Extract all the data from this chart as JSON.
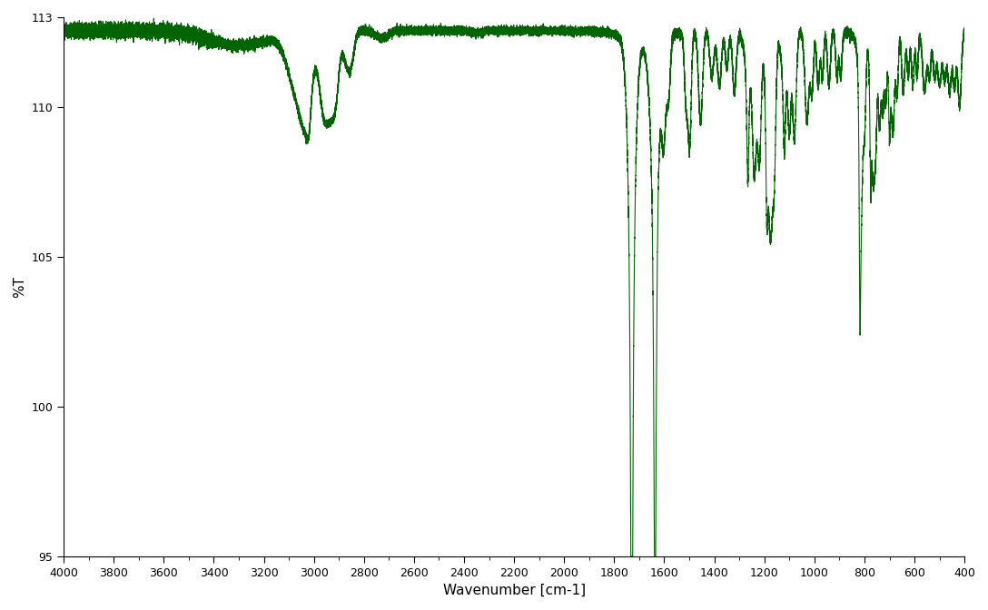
{
  "xlabel": "Wavenumber [cm-1]",
  "ylabel": "%T",
  "xlim": [
    4000,
    400
  ],
  "ylim": [
    95,
    113
  ],
  "yticks": [
    95,
    100,
    105,
    110,
    113
  ],
  "xticks": [
    4000,
    3800,
    3600,
    3400,
    3200,
    3000,
    2800,
    2600,
    2400,
    2200,
    2000,
    1800,
    1600,
    1400,
    1200,
    1000,
    800,
    600,
    400
  ],
  "line_color": "#006400",
  "background_color": "#ffffff",
  "line_width": 0.8
}
